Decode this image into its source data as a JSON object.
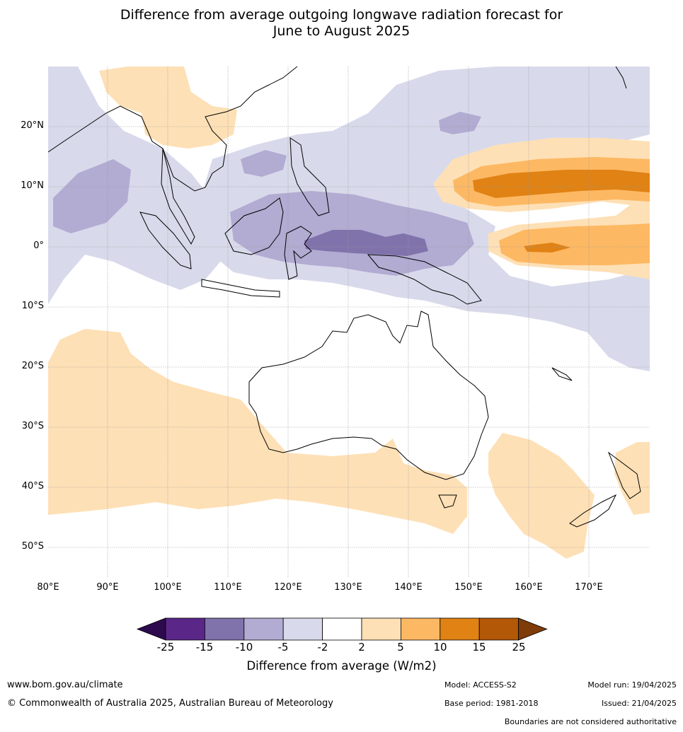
{
  "title_line1": "Difference from average outgoing longwave radiation forecast for",
  "title_line2": "June to August 2025",
  "lat_labels": [
    "20°N",
    "10°N",
    "0°",
    "10°S",
    "20°S",
    "30°S",
    "40°S",
    "50°S"
  ],
  "lon_labels": [
    "80°E",
    "90°E",
    "100°E",
    "110°E",
    "120°E",
    "130°E",
    "140°E",
    "150°E",
    "160°E",
    "170°E"
  ],
  "colorbar": {
    "ticks": [
      "-25",
      "-15",
      "-10",
      "-5",
      "-2",
      "2",
      "5",
      "10",
      "15",
      "25"
    ],
    "colors": [
      "#2d0a4e",
      "#5a2788",
      "#8073ac",
      "#b2abd2",
      "#d8daeb",
      "#ffffff",
      "#fee0b6",
      "#fdb863",
      "#e08214",
      "#b35806",
      "#7f3b08"
    ],
    "label": "Difference from average (W/m2)"
  },
  "footer": {
    "url": "www.bom.gov.au/climate",
    "copyright": "© Commonwealth of Australia 2025, Australian Bureau of Meteorology",
    "model": "Model: ACCESS-S2",
    "base_period": "Base period: 1981-2018",
    "model_run": "Model run: 19/04/2025",
    "issued": "Issued: 21/04/2025",
    "disclaimer": "Boundaries are not considered authoritative"
  }
}
